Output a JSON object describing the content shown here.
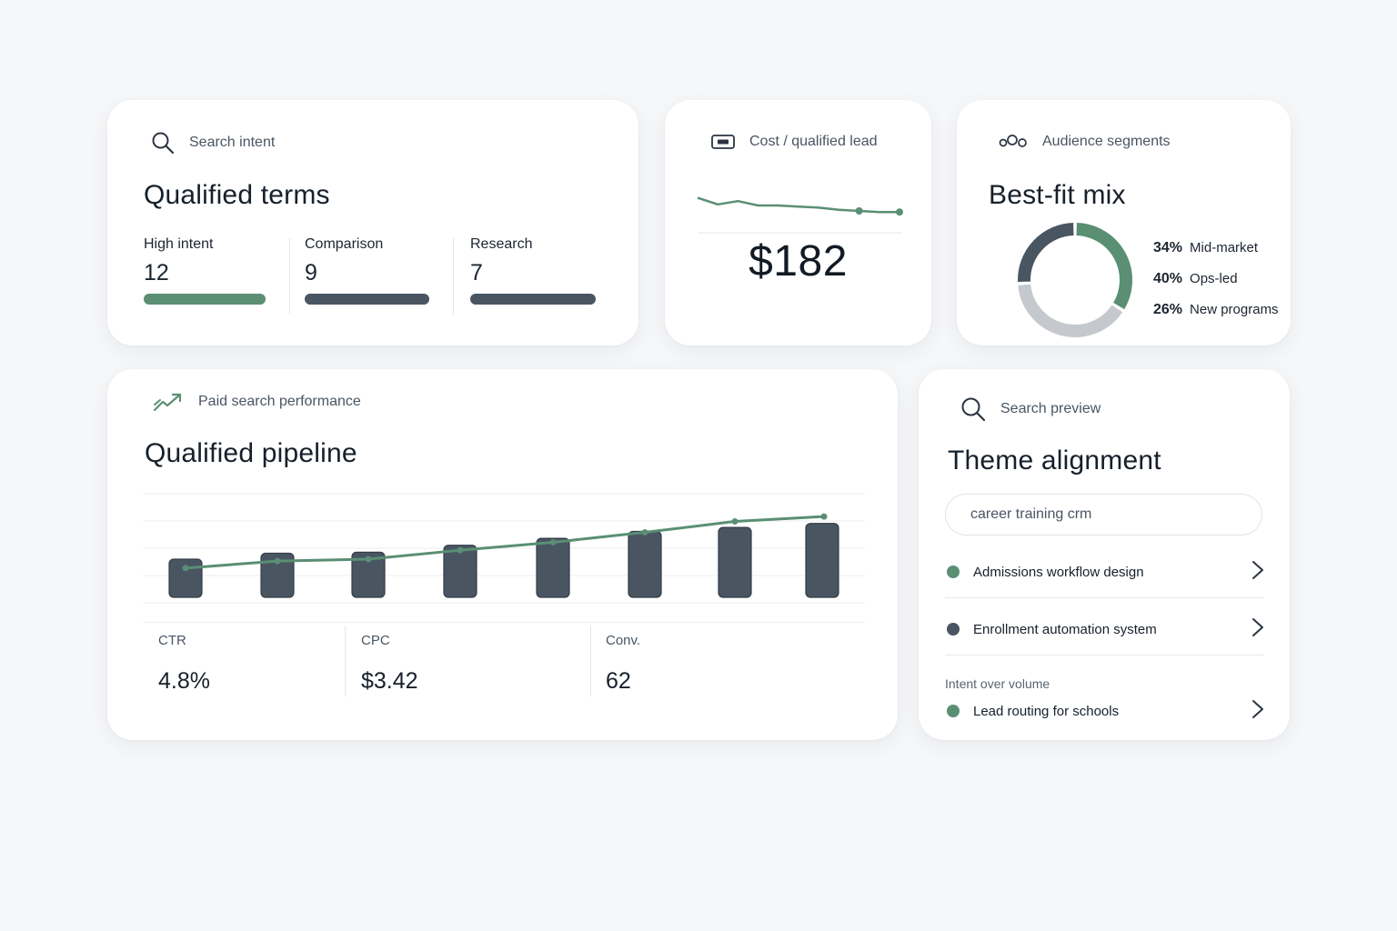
{
  "colors": {
    "accent_green": "#5a8f74",
    "dark_slate": "#4a5562",
    "light_gray": "#c5c9ce",
    "gridline": "#eceef1"
  },
  "terms_card": {
    "eyebrow": "Search intent",
    "icon": "search-icon",
    "title": "Qualified terms",
    "columns": [
      {
        "label": "High intent",
        "value": "12",
        "bar_color": "#5a8f74"
      },
      {
        "label": "Comparison",
        "value": "9",
        "bar_color": "#4a5562"
      },
      {
        "label": "Research",
        "value": "7",
        "bar_color": "#4a5562"
      }
    ]
  },
  "cost_card": {
    "eyebrow": "Cost / qualified lead",
    "icon": "card-icon",
    "value": "$182",
    "sparkline": [
      7,
      1,
      4,
      0,
      0,
      -1,
      -2,
      -4,
      -5,
      -6,
      -6
    ]
  },
  "audience_card": {
    "eyebrow": "Audience segments",
    "icon": "segments-icon",
    "title": "Best-fit mix",
    "segments": [
      {
        "pct": "34%",
        "label": "Mid-market",
        "color": "#5a8f74",
        "value": 34
      },
      {
        "pct": "40%",
        "label": "Ops-led",
        "color": "#c5c9ce",
        "value": 40
      },
      {
        "pct": "26%",
        "label": "New programs",
        "color": "#4a5562",
        "value": 26
      }
    ]
  },
  "pipeline_card": {
    "eyebrow": "Paid search performance",
    "icon": "trend-up-icon",
    "title": "Qualified pipeline",
    "metrics": [
      {
        "label": "CTR",
        "value": "4.8%"
      },
      {
        "label": "CPC",
        "value": "$3.42"
      },
      {
        "label": "Conv.",
        "value": "62"
      }
    ]
  },
  "chart_data": {
    "type": "bar",
    "categories": [
      "1",
      "2",
      "3",
      "4",
      "5",
      "6",
      "7",
      "8"
    ],
    "series": [
      {
        "type": "bar",
        "values": [
          44,
          50,
          51,
          58,
          65,
          72,
          76,
          80
        ],
        "color": "#4a5562"
      },
      {
        "type": "line",
        "values": [
          35,
          42,
          44,
          53,
          61,
          71,
          82,
          87
        ],
        "color": "#5a8f74"
      }
    ],
    "ylim": [
      0,
      110
    ],
    "grid": true,
    "title": "",
    "xlabel": "",
    "ylabel": ""
  },
  "preview_card": {
    "eyebrow": "Search preview",
    "icon": "search-icon",
    "title": "Theme alignment",
    "query": "career training crm",
    "results": [
      {
        "label": "Admissions workflow design",
        "dot_color": "#5a8f74"
      },
      {
        "label": "Enrollment automation system",
        "dot_color": "#4a5562"
      }
    ],
    "section_caption": "Intent over volume",
    "section_results": [
      {
        "label": "Lead routing for schools",
        "dot_color": "#5a8f74"
      }
    ]
  }
}
